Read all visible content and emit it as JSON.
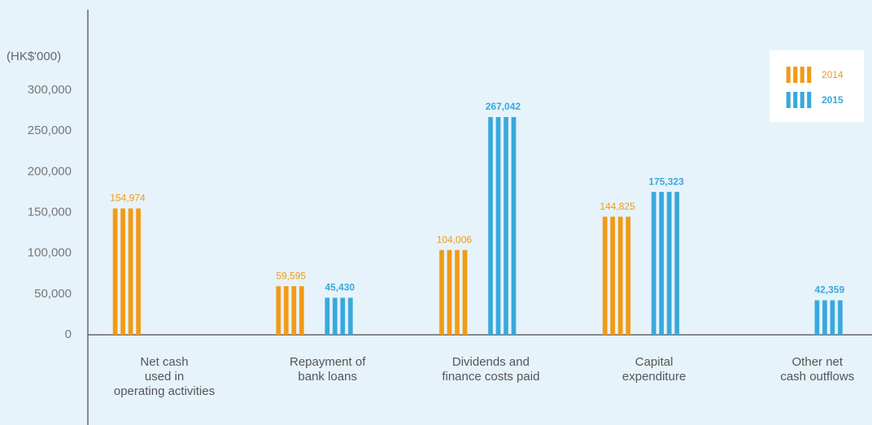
{
  "chart_data": {
    "type": "bar",
    "y_axis_label": "(HK$'000)",
    "categories": [
      "Net cash\nused in\noperating activities",
      "Repayment of\nbank loans",
      "Dividends and\nfinance costs paid",
      "Capital\nexpenditure",
      "Other net\ncash outflows"
    ],
    "series": [
      {
        "name": "2014",
        "color": "#f29a14",
        "values": [
          154974,
          59595,
          104006,
          144825,
          null
        ],
        "value_labels": [
          "154,974",
          "59,595",
          "104,006",
          "144,825",
          null
        ]
      },
      {
        "name": "2015",
        "color": "#3aa8dc",
        "values": [
          null,
          45430,
          267042,
          175323,
          42359
        ],
        "value_labels": [
          null,
          "45,430",
          "267,042",
          "175,323",
          "42,359"
        ]
      }
    ],
    "ylim": [
      0,
      300000
    ],
    "yticks": [
      0,
      {
        "value": 50000,
        "label": "50,000"
      },
      {
        "value": 100000,
        "label": "100,000"
      },
      {
        "value": 150000,
        "label": "150,000"
      },
      {
        "value": 200000,
        "label": "200,000"
      },
      {
        "value": 250000,
        "label": "250,000"
      },
      {
        "value": 300000,
        "label": "300,000"
      }
    ],
    "legend": "top-right"
  }
}
